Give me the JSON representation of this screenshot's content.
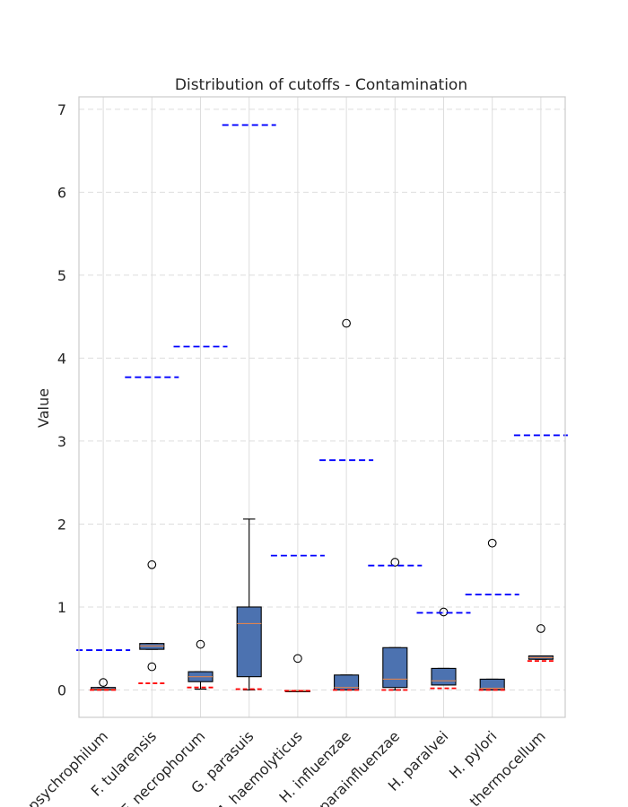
{
  "chart_data": {
    "type": "box",
    "title": "Distribution of cutoffs - Contamination",
    "xlabel": "",
    "ylabel": "Value",
    "ylim": [
      -0.33,
      7.15
    ],
    "yticks": [
      0,
      1,
      2,
      3,
      4,
      5,
      6,
      7
    ],
    "grid": true,
    "categories": [
      "C. psychrophilum",
      "F. tularensis",
      "F. necrophorum",
      "G. parasuis",
      "M. haemolyticus",
      "H. influenzae",
      "H. parainfluenzae",
      "H. paralvei",
      "H. pylori",
      "C. thermocellum"
    ],
    "boxes": [
      {
        "whisker_low": 0.0,
        "q1": 0.0,
        "median": 0.01,
        "q3": 0.03,
        "whisker_high": 0.03,
        "outliers": [
          0.09
        ]
      },
      {
        "whisker_low": 0.49,
        "q1": 0.49,
        "median": 0.53,
        "q3": 0.56,
        "whisker_high": 0.56,
        "outliers": [
          1.51,
          0.28
        ]
      },
      {
        "whisker_low": 0.01,
        "q1": 0.1,
        "median": 0.16,
        "q3": 0.22,
        "whisker_high": 0.22,
        "outliers": [
          0.55
        ]
      },
      {
        "whisker_low": 0.0,
        "q1": 0.16,
        "median": 0.8,
        "q3": 1.0,
        "whisker_high": 2.06,
        "outliers": []
      },
      {
        "whisker_low": -0.01,
        "q1": -0.01,
        "median": -0.01,
        "q3": -0.01,
        "whisker_high": -0.01,
        "outliers": [
          0.38
        ]
      },
      {
        "whisker_low": 0.0,
        "q1": 0.0,
        "median": 0.03,
        "q3": 0.18,
        "whisker_high": 0.18,
        "outliers": [
          4.42
        ]
      },
      {
        "whisker_low": 0.0,
        "q1": 0.03,
        "median": 0.13,
        "q3": 0.51,
        "whisker_high": 0.51,
        "outliers": [
          1.54
        ]
      },
      {
        "whisker_low": 0.06,
        "q1": 0.06,
        "median": 0.11,
        "q3": 0.26,
        "whisker_high": 0.26,
        "outliers": [
          0.94
        ]
      },
      {
        "whisker_low": 0.0,
        "q1": 0.0,
        "median": 0.02,
        "q3": 0.13,
        "whisker_high": 0.13,
        "outliers": [
          1.77
        ]
      },
      {
        "whisker_low": 0.37,
        "q1": 0.37,
        "median": 0.39,
        "q3": 0.41,
        "whisker_high": 0.41,
        "outliers": [
          0.74
        ]
      }
    ],
    "cutoff_high": [
      0.48,
      3.77,
      4.14,
      6.81,
      1.62,
      2.77,
      1.5,
      0.93,
      1.15,
      3.07
    ],
    "cutoff_low": [
      0.0,
      0.08,
      0.03,
      0.01,
      -0.01,
      0.0,
      0.0,
      0.02,
      0.0,
      0.35
    ],
    "colors": {
      "box_fill": "#4c72b0",
      "box_edge": "#000000",
      "median": "#dd8452",
      "cutoff_high": "#0000ff",
      "cutoff_low": "#ff0000",
      "grid": "#dddddd",
      "spine": "#cccccc",
      "text": "#262626"
    }
  }
}
